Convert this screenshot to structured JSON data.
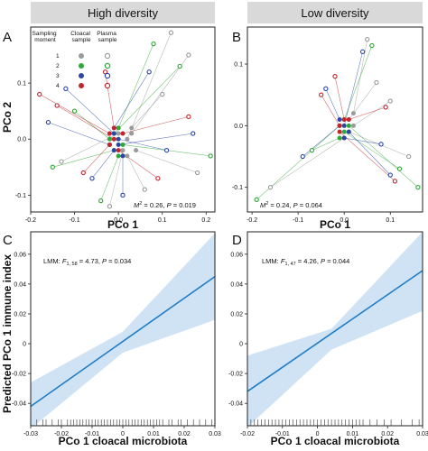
{
  "colors": {
    "moment1": "#9a9a9a",
    "moment2": "#2ea836",
    "moment3": "#2b46a8",
    "moment4": "#c2262c",
    "fit_line": "#1f7cc7",
    "ci_band": "#cfe3f5",
    "strip": "#d9d9d9"
  },
  "strips": {
    "left": "High diversity",
    "right": "Low diversity"
  },
  "panel_tags": [
    "A",
    "B",
    "C",
    "D"
  ],
  "legend": {
    "header_moment": "Sampling moment",
    "header_cloacal": "Cloacal sample",
    "header_plasma": "Plasma sample",
    "moments": [
      "1",
      "2",
      "3",
      "4"
    ]
  },
  "labels": {
    "pco2": "PCo 2",
    "pco1": "PCo 1",
    "immune": "Predicted PCo 1 immune index",
    "cloacal": "PCo 1 cloacal microbiota"
  },
  "stats": {
    "A": "M² = 0.26, P = 0.019",
    "B": "M² = 0.24, P = 0.064",
    "C": "LMM: F1, 58 = 4.73, P = 0.034",
    "D": "LMM: F1, 47 = 4.26, P = 0.044"
  },
  "chart_data": [
    {
      "panel": "A",
      "type": "scatter",
      "xlabel": "PCo 1",
      "ylabel": "PCo 2",
      "xlim": [
        -0.2,
        0.22
      ],
      "ylim": [
        -0.13,
        0.2
      ],
      "xticks": [
        -0.2,
        -0.1,
        0.0,
        0.1,
        0.2
      ],
      "xticklabels": [
        "-0.2",
        "-0.1",
        "0.0",
        "0.1",
        "0.2"
      ],
      "yticks": [
        -0.1,
        0.0,
        0.1
      ],
      "yticklabels": [
        "-0.1",
        "0.0",
        "0.1"
      ],
      "points": [
        {
          "moment": 1,
          "cx": 0.02,
          "cy": 0.0,
          "px": 0.12,
          "py": 0.19
        },
        {
          "moment": 1,
          "cx": 0.03,
          "cy": 0.01,
          "px": 0.16,
          "py": 0.15
        },
        {
          "moment": 1,
          "cx": 0.04,
          "cy": -0.02,
          "px": 0.18,
          "py": -0.06
        },
        {
          "moment": 1,
          "cx": 0.01,
          "cy": -0.02,
          "px": -0.02,
          "py": -0.12
        },
        {
          "moment": 1,
          "cx": 0.02,
          "cy": -0.03,
          "px": 0.06,
          "py": -0.09
        },
        {
          "moment": 1,
          "cx": 0.03,
          "cy": 0.02,
          "px": 0.1,
          "py": 0.08
        },
        {
          "moment": 1,
          "cx": 0.0,
          "cy": 0.01,
          "px": -0.13,
          "py": -0.04
        },
        {
          "moment": 2,
          "cx": 0.0,
          "cy": 0.02,
          "px": 0.08,
          "py": 0.17
        },
        {
          "moment": 2,
          "cx": -0.01,
          "cy": 0.01,
          "px": 0.14,
          "py": 0.13
        },
        {
          "moment": 2,
          "cx": 0.01,
          "cy": -0.01,
          "px": 0.21,
          "py": -0.03
        },
        {
          "moment": 2,
          "cx": -0.01,
          "cy": -0.02,
          "px": -0.15,
          "py": -0.05
        },
        {
          "moment": 2,
          "cx": 0.0,
          "cy": -0.03,
          "px": -0.04,
          "py": -0.11
        },
        {
          "moment": 2,
          "cx": -0.02,
          "cy": 0.0,
          "px": -0.1,
          "py": 0.05
        },
        {
          "moment": 3,
          "cx": -0.01,
          "cy": 0.02,
          "px": 0.07,
          "py": 0.12
        },
        {
          "moment": 3,
          "cx": 0.0,
          "cy": -0.01,
          "px": 0.17,
          "py": 0.01
        },
        {
          "moment": 3,
          "cx": 0.01,
          "cy": -0.03,
          "px": 0.01,
          "py": -0.1
        },
        {
          "moment": 3,
          "cx": -0.02,
          "cy": -0.01,
          "px": -0.16,
          "py": 0.03
        },
        {
          "moment": 3,
          "cx": -0.01,
          "cy": 0.01,
          "px": -0.12,
          "py": 0.09
        },
        {
          "moment": 3,
          "cx": 0.0,
          "cy": 0.0,
          "px": 0.11,
          "py": -0.02
        },
        {
          "moment": 3,
          "cx": -0.01,
          "cy": -0.02,
          "px": -0.06,
          "py": -0.07
        },
        {
          "moment": 4,
          "cx": -0.02,
          "cy": 0.01,
          "px": -0.18,
          "py": 0.08
        },
        {
          "moment": 4,
          "cx": -0.01,
          "cy": 0.0,
          "px": -0.14,
          "py": 0.06
        },
        {
          "moment": 4,
          "cx": 0.0,
          "cy": -0.02,
          "px": 0.09,
          "py": -0.07
        },
        {
          "moment": 4,
          "cx": -0.02,
          "cy": -0.01,
          "px": -0.08,
          "py": -0.06
        },
        {
          "moment": 4,
          "cx": 0.01,
          "cy": 0.01,
          "px": 0.16,
          "py": 0.04
        },
        {
          "moment": 4,
          "cx": -0.01,
          "cy": 0.02,
          "px": -0.03,
          "py": 0.12
        }
      ]
    },
    {
      "panel": "B",
      "type": "scatter",
      "xlabel": "PCo 1",
      "ylabel": "",
      "xlim": [
        -0.21,
        0.17
      ],
      "ylim": [
        -0.14,
        0.16
      ],
      "xticks": [
        -0.2,
        -0.1,
        0.0,
        0.1
      ],
      "xticklabels": [
        "-0.2",
        "-0.1",
        "0.0",
        "0.1"
      ],
      "yticks": [
        -0.1,
        0.0,
        0.1
      ],
      "yticklabels": [
        "-0.1",
        "0.0",
        "0.1"
      ],
      "points": [
        {
          "moment": 1,
          "cx": 0.01,
          "cy": 0.01,
          "px": 0.07,
          "py": 0.07
        },
        {
          "moment": 1,
          "cx": 0.02,
          "cy": 0.0,
          "px": 0.1,
          "py": 0.04
        },
        {
          "moment": 1,
          "cx": 0.01,
          "cy": -0.01,
          "px": 0.14,
          "py": -0.05
        },
        {
          "moment": 1,
          "cx": 0.0,
          "cy": -0.02,
          "px": -0.16,
          "py": -0.1
        },
        {
          "moment": 1,
          "cx": 0.02,
          "cy": 0.02,
          "px": 0.05,
          "py": 0.14
        },
        {
          "moment": 2,
          "cx": 0.0,
          "cy": 0.01,
          "px": 0.06,
          "py": 0.13
        },
        {
          "moment": 2,
          "cx": -0.01,
          "cy": 0.0,
          "px": -0.19,
          "py": -0.12
        },
        {
          "moment": 2,
          "cx": 0.0,
          "cy": -0.01,
          "px": 0.12,
          "py": -0.07
        },
        {
          "moment": 2,
          "cx": -0.01,
          "cy": -0.02,
          "px": -0.07,
          "py": -0.04
        },
        {
          "moment": 2,
          "cx": 0.01,
          "cy": 0.0,
          "px": 0.16,
          "py": -0.1
        },
        {
          "moment": 3,
          "cx": 0.0,
          "cy": 0.0,
          "px": 0.04,
          "py": 0.12
        },
        {
          "moment": 3,
          "cx": -0.01,
          "cy": 0.01,
          "px": -0.04,
          "py": 0.06
        },
        {
          "moment": 3,
          "cx": 0.01,
          "cy": -0.01,
          "px": 0.1,
          "py": -0.08
        },
        {
          "moment": 3,
          "cx": 0.0,
          "cy": -0.02,
          "px": 0.08,
          "py": -0.03
        },
        {
          "moment": 3,
          "cx": -0.01,
          "cy": 0.0,
          "px": -0.09,
          "py": -0.05
        },
        {
          "moment": 4,
          "cx": 0.0,
          "cy": 0.01,
          "px": -0.02,
          "py": 0.08
        },
        {
          "moment": 4,
          "cx": -0.01,
          "cy": -0.01,
          "px": 0.11,
          "py": -0.09
        },
        {
          "moment": 4,
          "cx": 0.01,
          "cy": 0.01,
          "px": 0.09,
          "py": 0.03
        },
        {
          "moment": 4,
          "cx": -0.01,
          "cy": 0.0,
          "px": -0.05,
          "py": 0.05
        }
      ]
    },
    {
      "panel": "C",
      "type": "line",
      "xlabel": "PCo 1 cloacal microbiota",
      "ylabel": "Predicted PCo 1 immune index",
      "xlim": [
        -0.03,
        0.03
      ],
      "ylim": [
        -0.055,
        0.075
      ],
      "xticks": [
        -0.03,
        -0.02,
        -0.01,
        0.0,
        0.01,
        0.02,
        0.03
      ],
      "xticklabels": [
        "-0.03",
        "-0.02",
        "-0.01",
        "0",
        "0.01",
        "0.02",
        "0.03"
      ],
      "yticks": [
        -0.04,
        -0.02,
        0.0,
        0.02,
        0.04,
        0.06
      ],
      "yticklabels": [
        "-0.04",
        "-0.02",
        "0",
        "0.02",
        "0.04",
        "0.06"
      ],
      "fit": {
        "x": [
          -0.03,
          0.03
        ],
        "y": [
          -0.042,
          0.045
        ]
      },
      "ci_lower": {
        "x": [
          -0.03,
          0.0,
          0.03
        ],
        "y": [
          -0.057,
          -0.006,
          0.016
        ]
      },
      "ci_upper": {
        "x": [
          -0.03,
          0.0,
          0.03
        ],
        "y": [
          -0.026,
          0.008,
          0.074
        ]
      },
      "rug": [
        -0.028,
        -0.026,
        -0.025,
        -0.023,
        -0.021,
        -0.02,
        -0.018,
        -0.017,
        -0.016,
        -0.015,
        -0.014,
        -0.013,
        -0.012,
        -0.011,
        -0.01,
        -0.009,
        -0.008,
        -0.007,
        -0.006,
        -0.005,
        -0.004,
        -0.003,
        -0.002,
        -0.001,
        0.0,
        0.001,
        0.002,
        0.003,
        0.004,
        0.005,
        0.006,
        0.007,
        0.008,
        0.009,
        0.01,
        0.011,
        0.012,
        0.013,
        0.015,
        0.016,
        0.018,
        0.019,
        0.021,
        0.023,
        0.025,
        0.027,
        0.029
      ]
    },
    {
      "panel": "D",
      "type": "line",
      "xlabel": "PCo 1 cloacal microbiota",
      "ylabel": "",
      "xlim": [
        -0.02,
        0.03
      ],
      "ylim": [
        -0.055,
        0.075
      ],
      "xticks": [
        -0.02,
        -0.01,
        0.0,
        0.01,
        0.02,
        0.03
      ],
      "xticklabels": [
        "-0.02",
        "-0.01",
        "0",
        "0.01",
        "0.02",
        "0.03"
      ],
      "yticks": [
        -0.04,
        -0.02,
        0.0,
        0.02,
        0.04,
        0.06
      ],
      "yticklabels": [
        "-0.04",
        "-0.02",
        "0",
        "0.02",
        "0.04",
        "0.06"
      ],
      "fit": {
        "x": [
          -0.02,
          0.03
        ],
        "y": [
          -0.032,
          0.049
        ]
      },
      "ci_lower": {
        "x": [
          -0.02,
          0.004,
          0.03
        ],
        "y": [
          -0.056,
          -0.004,
          0.022
        ]
      },
      "ci_upper": {
        "x": [
          -0.02,
          0.004,
          0.03
        ],
        "y": [
          -0.008,
          0.01,
          0.075
        ]
      },
      "rug": [
        -0.019,
        -0.018,
        -0.017,
        -0.016,
        -0.015,
        -0.014,
        -0.013,
        -0.012,
        -0.011,
        -0.01,
        -0.009,
        -0.008,
        -0.007,
        -0.006,
        -0.005,
        -0.004,
        -0.003,
        -0.002,
        -0.001,
        0.0,
        0.001,
        0.002,
        0.003,
        0.004,
        0.005,
        0.006,
        0.007,
        0.008,
        0.009,
        0.01,
        0.011,
        0.012,
        0.013,
        0.015,
        0.017,
        0.019,
        0.021,
        0.024,
        0.027,
        0.029
      ]
    }
  ]
}
